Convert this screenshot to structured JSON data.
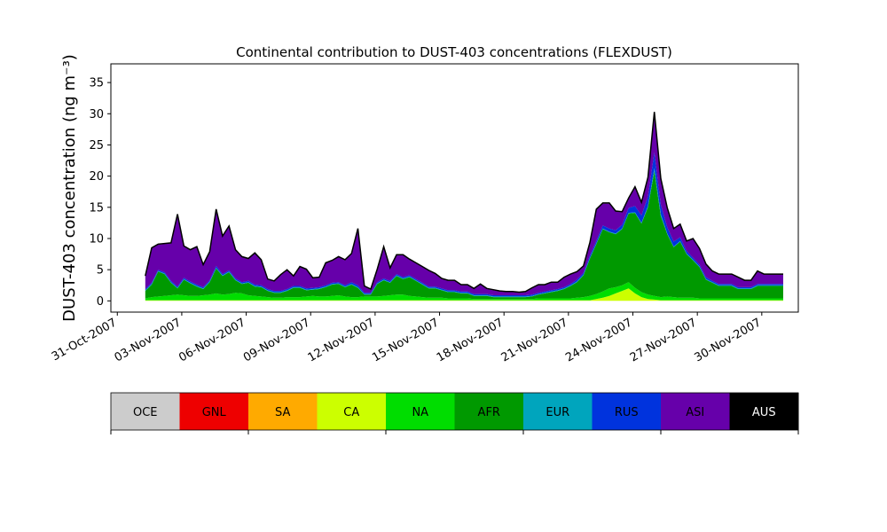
{
  "chart_data": {
    "type": "area",
    "stacked": true,
    "title": "Continental contribution to DUST-403 concentrations (FLEXDUST)",
    "ylabel": "DUST-403 concentration (ng m⁻³)",
    "ylim": [
      -1.8,
      38
    ],
    "xlim_days": [
      -0.3,
      31.7
    ],
    "x_ticks": [
      {
        "day": 0,
        "label": "31-Oct-2007"
      },
      {
        "day": 3,
        "label": "03-Nov-2007"
      },
      {
        "day": 6,
        "label": "06-Nov-2007"
      },
      {
        "day": 9,
        "label": "09-Nov-2007"
      },
      {
        "day": 12,
        "label": "12-Nov-2007"
      },
      {
        "day": 15,
        "label": "15-Nov-2007"
      },
      {
        "day": 18,
        "label": "18-Nov-2007"
      },
      {
        "day": 21,
        "label": "21-Nov-2007"
      },
      {
        "day": 24,
        "label": "24-Nov-2007"
      },
      {
        "day": 27,
        "label": "27-Nov-2007"
      },
      {
        "day": 30,
        "label": "30-Nov-2007"
      }
    ],
    "y_ticks": [
      0,
      5,
      10,
      15,
      20,
      25,
      30,
      35
    ],
    "x_day_index": [
      1.3,
      1.6,
      1.9,
      2.2,
      2.5,
      2.8,
      3.1,
      3.4,
      3.7,
      4.0,
      4.3,
      4.6,
      4.9,
      5.2,
      5.5,
      5.8,
      6.1,
      6.4,
      6.7,
      7.0,
      7.3,
      7.6,
      7.9,
      8.2,
      8.5,
      8.8,
      9.1,
      9.4,
      9.7,
      10.0,
      10.3,
      10.6,
      10.9,
      11.2,
      11.5,
      11.8,
      12.1,
      12.4,
      12.7,
      13.0,
      13.3,
      13.6,
      13.9,
      14.2,
      14.5,
      14.8,
      15.1,
      15.4,
      15.7,
      16.0,
      16.3,
      16.6,
      16.9,
      17.2,
      17.5,
      17.8,
      18.1,
      18.4,
      18.7,
      19.0,
      19.3,
      19.6,
      19.9,
      20.2,
      20.5,
      20.8,
      21.1,
      21.4,
      21.7,
      22.0,
      22.3,
      22.6,
      22.9,
      23.2,
      23.5,
      23.8,
      24.1,
      24.4,
      24.7,
      25.0,
      25.3,
      25.6,
      25.9,
      26.2,
      26.5,
      26.8,
      27.1,
      27.4,
      27.7,
      28.0,
      28.3,
      28.6,
      28.9,
      29.2,
      29.5,
      29.8,
      30.1,
      30.4,
      30.7,
      31.0
    ],
    "series": [
      {
        "name": "CA",
        "color": "#ccff00",
        "values": [
          0.1,
          0.1,
          0.1,
          0.1,
          0.1,
          0.1,
          0.1,
          0.1,
          0.1,
          0.1,
          0.1,
          0.1,
          0.1,
          0.1,
          0.1,
          0.1,
          0.1,
          0.1,
          0.1,
          0.1,
          0.1,
          0.1,
          0.1,
          0.1,
          0.1,
          0.1,
          0.1,
          0.1,
          0.1,
          0.1,
          0.1,
          0.1,
          0.1,
          0.1,
          0.1,
          0.1,
          0.1,
          0.1,
          0.1,
          0.1,
          0.1,
          0.1,
          0.1,
          0.1,
          0.1,
          0.1,
          0.1,
          0.1,
          0.1,
          0.1,
          0.1,
          0.1,
          0.1,
          0.1,
          0.1,
          0.1,
          0.1,
          0.1,
          0.1,
          0.1,
          0.1,
          0.1,
          0.1,
          0.1,
          0.1,
          0.1,
          0.1,
          0.1,
          0.1,
          0.1,
          0.3,
          0.5,
          0.8,
          1.2,
          1.6,
          2.0,
          1.2,
          0.6,
          0.3,
          0.2,
          0.1,
          0.1,
          0.1,
          0.1,
          0.1,
          0.1,
          0.1,
          0.1,
          0.1,
          0.1,
          0.1,
          0.1,
          0.1,
          0.1,
          0.1,
          0.1,
          0.1,
          0.1,
          0.1,
          0.1
        ]
      },
      {
        "name": "NA",
        "color": "#00dd00",
        "values": [
          0.3,
          0.5,
          0.6,
          0.7,
          0.8,
          0.9,
          0.8,
          0.7,
          0.7,
          0.8,
          0.9,
          1.1,
          0.9,
          1.0,
          1.2,
          1.1,
          0.8,
          0.7,
          0.6,
          0.5,
          0.4,
          0.4,
          0.5,
          0.5,
          0.5,
          0.6,
          0.7,
          0.6,
          0.6,
          0.7,
          0.8,
          0.6,
          0.5,
          0.5,
          0.6,
          0.6,
          0.6,
          0.7,
          0.8,
          0.9,
          0.9,
          0.7,
          0.6,
          0.5,
          0.4,
          0.4,
          0.4,
          0.3,
          0.3,
          0.3,
          0.3,
          0.2,
          0.2,
          0.2,
          0.2,
          0.2,
          0.2,
          0.2,
          0.2,
          0.2,
          0.2,
          0.3,
          0.3,
          0.3,
          0.3,
          0.3,
          0.3,
          0.4,
          0.5,
          0.7,
          0.8,
          1.0,
          1.2,
          1.0,
          0.9,
          1.0,
          0.9,
          0.8,
          0.7,
          0.6,
          0.5,
          0.6,
          0.5,
          0.4,
          0.4,
          0.4,
          0.3,
          0.3,
          0.3,
          0.3,
          0.3,
          0.3,
          0.3,
          0.3,
          0.3,
          0.3,
          0.3,
          0.3,
          0.3,
          0.3
        ]
      },
      {
        "name": "AFR",
        "color": "#009900",
        "values": [
          1.2,
          2.0,
          4.0,
          3.5,
          2.0,
          1.0,
          2.5,
          2.0,
          1.5,
          1.0,
          2.0,
          4.0,
          3.0,
          3.5,
          2.0,
          1.5,
          2.0,
          1.5,
          1.5,
          1.0,
          0.8,
          0.8,
          1.0,
          1.5,
          1.5,
          1.0,
          1.0,
          1.2,
          1.5,
          1.8,
          1.8,
          1.5,
          2.0,
          1.5,
          0.3,
          0.3,
          2.0,
          2.5,
          2.0,
          3.0,
          2.5,
          3.0,
          2.5,
          2.0,
          1.5,
          1.5,
          1.2,
          1.0,
          1.0,
          0.8,
          0.8,
          0.5,
          0.5,
          0.5,
          0.3,
          0.3,
          0.3,
          0.3,
          0.3,
          0.3,
          0.4,
          0.6,
          0.8,
          1.0,
          1.2,
          1.5,
          2.0,
          2.5,
          3.5,
          6.0,
          8.0,
          10.0,
          9.0,
          8.5,
          9.0,
          11.0,
          12.0,
          11.0,
          14.0,
          20.0,
          13.0,
          10.0,
          8.0,
          9.0,
          7.0,
          6.0,
          5.0,
          3.0,
          2.5,
          2.0,
          2.0,
          2.0,
          1.5,
          1.5,
          1.5,
          2.0,
          2.0,
          2.0,
          2.0,
          2.0
        ]
      },
      {
        "name": "EUR",
        "color": "#00a5bd",
        "values": [
          0.1,
          0.1,
          0.1,
          0.1,
          0.1,
          0.1,
          0.1,
          0.1,
          0.1,
          0.1,
          0.1,
          0.1,
          0.1,
          0.1,
          0.1,
          0.1,
          0.1,
          0.1,
          0.1,
          0.1,
          0.1,
          0.1,
          0.1,
          0.1,
          0.1,
          0.1,
          0.1,
          0.1,
          0.1,
          0.1,
          0.1,
          0.1,
          0.1,
          0.1,
          0.1,
          0.1,
          0.1,
          0.1,
          0.1,
          0.1,
          0.1,
          0.1,
          0.1,
          0.1,
          0.1,
          0.1,
          0.1,
          0.1,
          0.1,
          0.1,
          0.1,
          0.1,
          0.1,
          0.1,
          0.1,
          0.1,
          0.1,
          0.1,
          0.1,
          0.1,
          0.1,
          0.1,
          0.1,
          0.1,
          0.1,
          0.1,
          0.1,
          0.1,
          0.1,
          0.1,
          0.1,
          0.1,
          0.1,
          0.1,
          0.1,
          0.1,
          0.1,
          0.1,
          0.2,
          0.5,
          0.3,
          0.1,
          0.1,
          0.1,
          0.1,
          0.1,
          0.1,
          0.1,
          0.1,
          0.1,
          0.1,
          0.1,
          0.1,
          0.1,
          0.1,
          0.1,
          0.1,
          0.1,
          0.1,
          0.1
        ]
      },
      {
        "name": "RUS",
        "color": "#0033dd",
        "values": [
          0.2,
          0.2,
          0.2,
          0.2,
          0.2,
          0.2,
          0.2,
          0.2,
          0.2,
          0.2,
          0.2,
          0.3,
          0.2,
          0.2,
          0.2,
          0.2,
          0.2,
          0.2,
          0.2,
          0.2,
          0.2,
          0.2,
          0.2,
          0.2,
          0.2,
          0.2,
          0.2,
          0.2,
          0.2,
          0.2,
          0.2,
          0.2,
          0.3,
          0.3,
          0.2,
          0.2,
          0.2,
          0.2,
          0.2,
          0.2,
          0.2,
          0.2,
          0.2,
          0.2,
          0.2,
          0.2,
          0.2,
          0.2,
          0.2,
          0.2,
          0.2,
          0.2,
          0.2,
          0.2,
          0.2,
          0.2,
          0.2,
          0.2,
          0.2,
          0.2,
          0.2,
          0.2,
          0.2,
          0.2,
          0.2,
          0.2,
          0.2,
          0.3,
          0.3,
          0.4,
          0.4,
          0.5,
          0.5,
          0.5,
          0.6,
          0.8,
          1.0,
          1.2,
          1.5,
          2.5,
          1.5,
          1.0,
          0.8,
          0.6,
          0.4,
          0.3,
          0.3,
          0.3,
          0.2,
          0.2,
          0.2,
          0.2,
          0.2,
          0.2,
          0.2,
          0.2,
          0.2,
          0.2,
          0.2,
          0.2
        ]
      },
      {
        "name": "ASI",
        "color": "#6600aa",
        "values": [
          2.0,
          5.5,
          4.0,
          4.5,
          6.0,
          11.5,
          5.0,
          5.0,
          6.0,
          3.5,
          4.5,
          9.0,
          6.0,
          7.0,
          4.5,
          4.0,
          3.5,
          5.0,
          4.0,
          1.5,
          1.5,
          2.5,
          3.0,
          1.5,
          3.0,
          3.0,
          1.5,
          1.5,
          3.5,
          3.5,
          4.0,
          4.0,
          4.5,
          9.0,
          1.0,
          0.5,
          2.0,
          5.0,
          2.0,
          3.0,
          3.5,
          2.5,
          2.5,
          2.5,
          2.5,
          2.0,
          1.5,
          1.5,
          1.5,
          1.0,
          1.0,
          0.8,
          1.5,
          0.8,
          0.8,
          0.6,
          0.5,
          0.5,
          0.4,
          0.5,
          1.0,
          1.2,
          1.0,
          1.2,
          1.0,
          1.5,
          1.5,
          1.2,
          1.0,
          2.0,
          5.0,
          3.5,
          4.0,
          3.0,
          2.0,
          1.5,
          3.0,
          2.0,
          3.0,
          6.0,
          4.0,
          3.0,
          2.0,
          2.0,
          1.5,
          3.0,
          2.5,
          2.0,
          1.5,
          1.5,
          1.5,
          1.5,
          1.5,
          1.0,
          1.0,
          2.0,
          1.5,
          1.5,
          1.5,
          1.5
        ]
      },
      {
        "name": "AUS",
        "color": "#000000",
        "values": [
          0.1,
          0.1,
          0.1,
          0.1,
          0.1,
          0.1,
          0.1,
          0.1,
          0.1,
          0.1,
          0.1,
          0.1,
          0.1,
          0.1,
          0.1,
          0.1,
          0.1,
          0.1,
          0.1,
          0.1,
          0.1,
          0.1,
          0.1,
          0.1,
          0.1,
          0.1,
          0.1,
          0.1,
          0.1,
          0.1,
          0.1,
          0.1,
          0.1,
          0.1,
          0.1,
          0.1,
          0.1,
          0.1,
          0.1,
          0.1,
          0.1,
          0.1,
          0.1,
          0.1,
          0.1,
          0.1,
          0.1,
          0.1,
          0.1,
          0.1,
          0.1,
          0.1,
          0.1,
          0.1,
          0.1,
          0.1,
          0.1,
          0.1,
          0.1,
          0.1,
          0.1,
          0.1,
          0.1,
          0.1,
          0.1,
          0.1,
          0.1,
          0.1,
          0.1,
          0.1,
          0.1,
          0.1,
          0.1,
          0.1,
          0.1,
          0.1,
          0.1,
          0.1,
          0.1,
          0.5,
          0.2,
          0.1,
          0.1,
          0.1,
          0.1,
          0.1,
          0.1,
          0.1,
          0.1,
          0.1,
          0.1,
          0.1,
          0.1,
          0.1,
          0.1,
          0.1,
          0.1,
          0.1,
          0.1,
          0.1
        ]
      }
    ],
    "legend": [
      {
        "label": "OCE",
        "color": "#cccccc",
        "text_color": "#000000"
      },
      {
        "label": "GNL",
        "color": "#ee0000",
        "text_color": "#000000"
      },
      {
        "label": "SA",
        "color": "#ffaa00",
        "text_color": "#000000"
      },
      {
        "label": "CA",
        "color": "#ccff00",
        "text_color": "#000000"
      },
      {
        "label": "NA",
        "color": "#00dd00",
        "text_color": "#000000"
      },
      {
        "label": "AFR",
        "color": "#009900",
        "text_color": "#000000"
      },
      {
        "label": "EUR",
        "color": "#00a5bd",
        "text_color": "#000000"
      },
      {
        "label": "RUS",
        "color": "#0033dd",
        "text_color": "#000000"
      },
      {
        "label": "ASI",
        "color": "#6600aa",
        "text_color": "#000000"
      },
      {
        "label": "AUS",
        "color": "#000000",
        "text_color": "#ffffff"
      }
    ],
    "total_line_color": "#000000"
  }
}
